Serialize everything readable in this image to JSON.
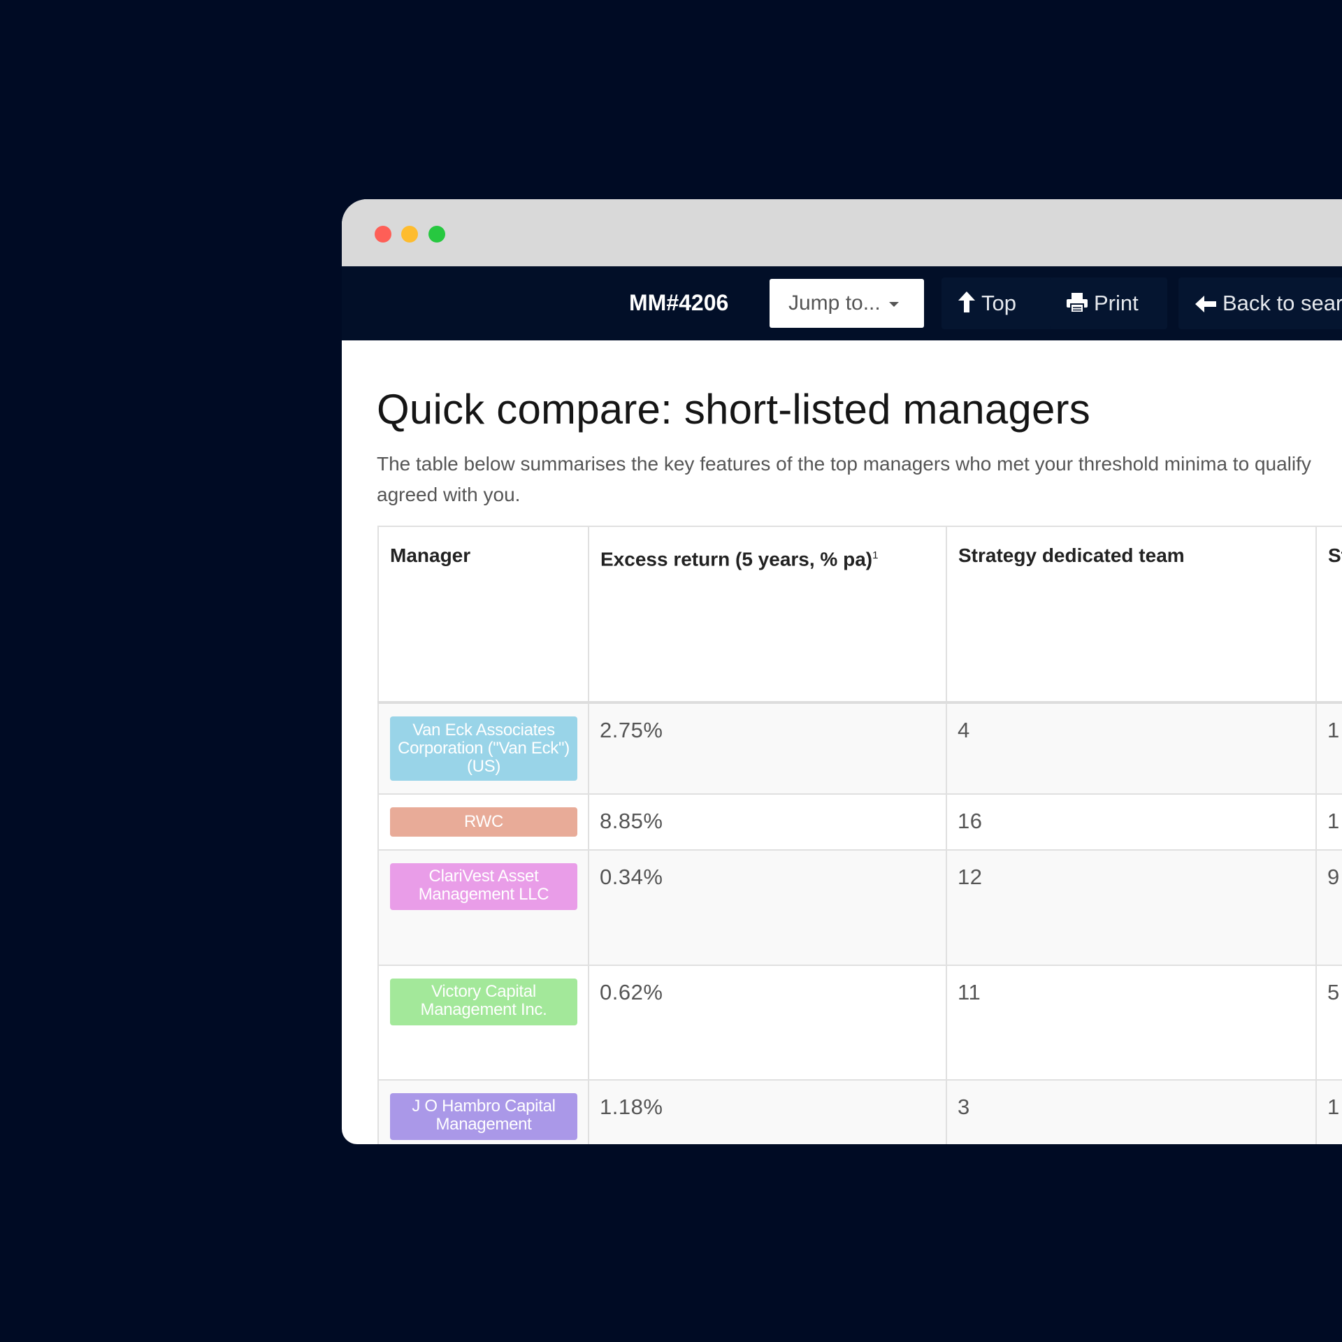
{
  "window": {
    "traffic_lights": [
      "close",
      "minimize",
      "zoom"
    ]
  },
  "navbar": {
    "id_label": "MM#4206",
    "jump_label": "Jump to...",
    "top_label": "Top",
    "print_label": "Print",
    "back_label": "Back to search"
  },
  "page": {
    "title": "Quick compare: short-listed managers",
    "intro": "The table below summarises the key features of the top managers who met your threshold minima to qualify agreed with you."
  },
  "table": {
    "headers": {
      "manager": "Manager",
      "excess_return": "Excess return (5 years, % pa)",
      "excess_return_note": "1",
      "team": "Strategy dedicated team",
      "col4": "St (U"
    },
    "rows": [
      {
        "manager": "Van Eck Associates Corporation (\"Van Eck\") (US)",
        "color": "#99d4e8",
        "excess_return": "2.75%",
        "team": "4",
        "col4": "1"
      },
      {
        "manager": "RWC",
        "color": "#e8ab98",
        "excess_return": "8.85%",
        "team": "16",
        "col4": "1"
      },
      {
        "manager": "ClariVest Asset Management LLC",
        "color": "#e99de8",
        "excess_return": "0.34%",
        "team": "12",
        "col4": "9"
      },
      {
        "manager": "Victory Capital Management Inc.",
        "color": "#a3e89a",
        "excess_return": "0.62%",
        "team": "11",
        "col4": "5"
      },
      {
        "manager": "J O Hambro Capital Management",
        "color": "#aa98e8",
        "excess_return": "1.18%",
        "team": "3",
        "col4": "1"
      }
    ]
  }
}
